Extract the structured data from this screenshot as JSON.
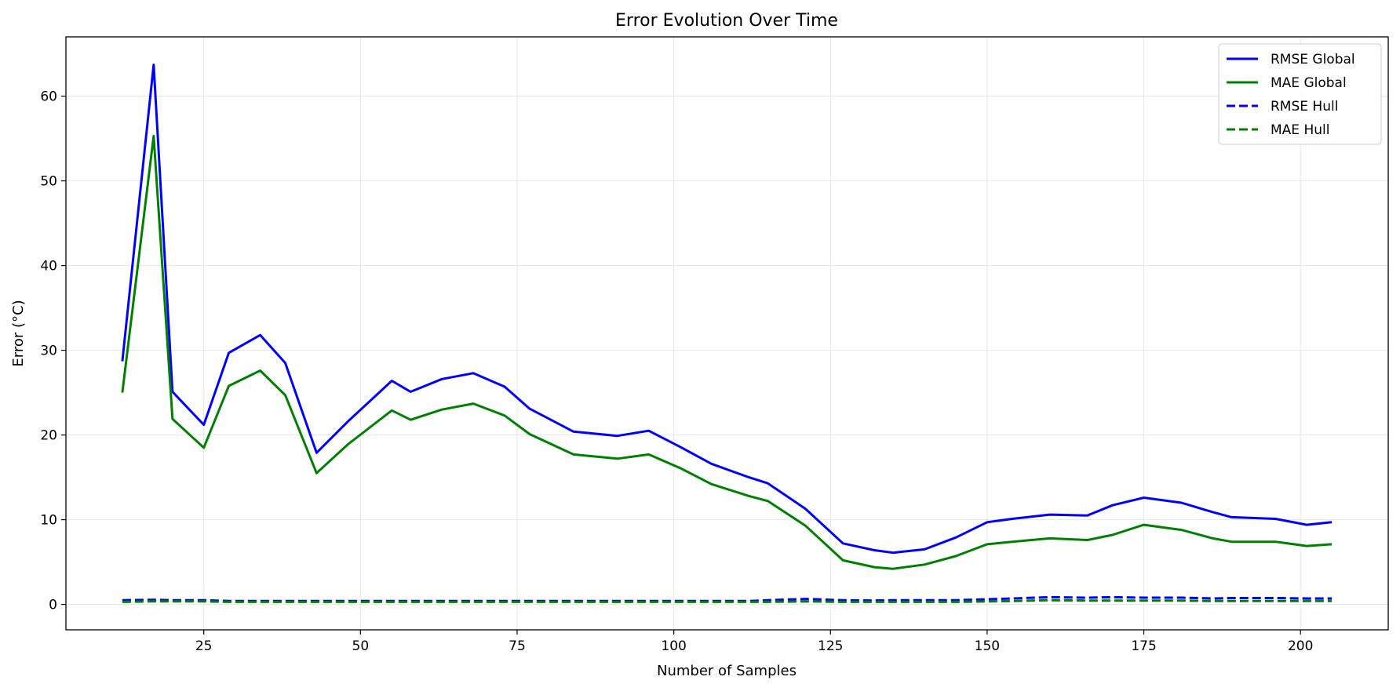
{
  "chart_data": {
    "type": "line",
    "title": "Error Evolution Over Time",
    "xlabel": "Number of Samples",
    "ylabel": "Error (°C)",
    "xlim": [
      3,
      214
    ],
    "ylim": [
      -3,
      67
    ],
    "xticks": [
      25,
      50,
      75,
      100,
      125,
      150,
      175,
      200
    ],
    "yticks": [
      0,
      10,
      20,
      30,
      40,
      50,
      60
    ],
    "grid": true,
    "legend_position": "top-right",
    "x": [
      12,
      17,
      20,
      25,
      29,
      34,
      38,
      43,
      48,
      55,
      58,
      63,
      68,
      73,
      77,
      84,
      91,
      96,
      101,
      106,
      112,
      115,
      121,
      127,
      132,
      135,
      140,
      145,
      150,
      154,
      160,
      166,
      170,
      175,
      181,
      186,
      189,
      196,
      201,
      205
    ],
    "series": [
      {
        "name": "RMSE Global",
        "color": "#0000ff",
        "style": "solid",
        "values": [
          28.7,
          63.7,
          25.1,
          21.2,
          29.7,
          31.8,
          28.5,
          17.9,
          21.6,
          26.4,
          25.1,
          26.6,
          27.3,
          25.7,
          23.1,
          20.4,
          19.9,
          20.5,
          18.6,
          16.6,
          15.0,
          14.3,
          11.3,
          7.2,
          6.4,
          6.1,
          6.5,
          7.9,
          9.7,
          10.1,
          10.6,
          10.5,
          11.7,
          12.6,
          12.0,
          10.9,
          10.3,
          10.1,
          9.4,
          9.7
        ]
      },
      {
        "name": "MAE Global",
        "color": "#008000",
        "style": "solid",
        "values": [
          25.0,
          55.3,
          21.9,
          18.5,
          25.8,
          27.6,
          24.7,
          15.5,
          18.9,
          22.9,
          21.8,
          23.0,
          23.7,
          22.3,
          20.1,
          17.7,
          17.2,
          17.7,
          16.1,
          14.2,
          12.8,
          12.2,
          9.3,
          5.2,
          4.4,
          4.2,
          4.7,
          5.7,
          7.1,
          7.4,
          7.8,
          7.6,
          8.2,
          9.4,
          8.8,
          7.8,
          7.4,
          7.4,
          6.9,
          7.1
        ]
      },
      {
        "name": "RMSE Hull",
        "color": "#0000ff",
        "style": "dashed",
        "values": [
          0.5,
          0.55,
          0.5,
          0.5,
          0.4,
          0.4,
          0.4,
          0.4,
          0.4,
          0.4,
          0.4,
          0.4,
          0.4,
          0.4,
          0.4,
          0.4,
          0.4,
          0.4,
          0.4,
          0.4,
          0.4,
          0.5,
          0.65,
          0.5,
          0.45,
          0.5,
          0.5,
          0.5,
          0.6,
          0.7,
          0.85,
          0.8,
          0.85,
          0.8,
          0.8,
          0.7,
          0.75,
          0.75,
          0.7,
          0.7
        ]
      },
      {
        "name": "MAE Hull",
        "color": "#008000",
        "style": "dashed",
        "values": [
          0.3,
          0.35,
          0.35,
          0.35,
          0.3,
          0.3,
          0.3,
          0.3,
          0.3,
          0.3,
          0.3,
          0.3,
          0.3,
          0.3,
          0.3,
          0.3,
          0.3,
          0.3,
          0.3,
          0.3,
          0.3,
          0.3,
          0.35,
          0.3,
          0.3,
          0.3,
          0.3,
          0.3,
          0.35,
          0.4,
          0.5,
          0.45,
          0.45,
          0.45,
          0.45,
          0.4,
          0.4,
          0.4,
          0.4,
          0.4
        ]
      }
    ]
  }
}
